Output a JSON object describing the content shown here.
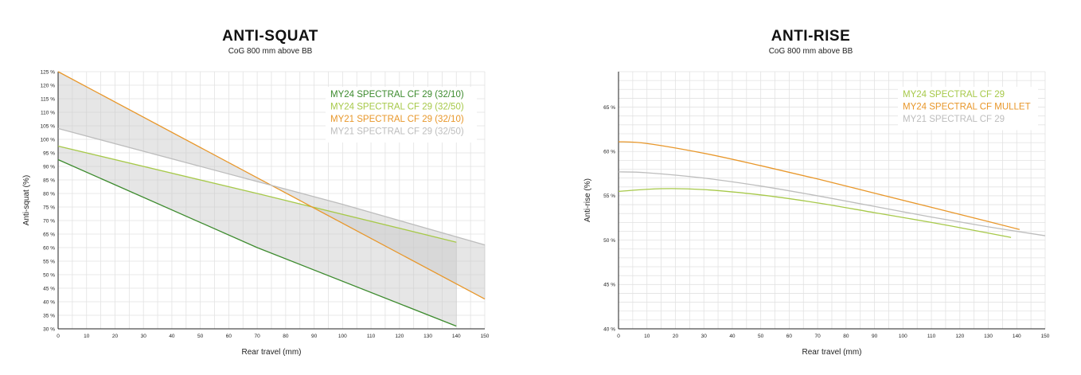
{
  "chart_data": [
    {
      "type": "line",
      "title": "ANTI-SQUAT",
      "subtitle": "CoG 800 mm above BB",
      "xlabel": "Rear travel (mm)",
      "ylabel": "Anti-squat (%)",
      "xlim": [
        0,
        150
      ],
      "ylim": [
        30,
        125
      ],
      "x_ticks": [
        "0",
        "10",
        "20",
        "30",
        "40",
        "50",
        "60",
        "70",
        "80",
        "90",
        "100",
        "110",
        "120",
        "130",
        "140",
        "150"
      ],
      "y_ticks": [
        "30 %",
        "35 %",
        "40 %",
        "45 %",
        "50 %",
        "55 %",
        "60 %",
        "65 %",
        "70 %",
        "75 %",
        "80 %",
        "85 %",
        "90 %",
        "95 %",
        "100 %",
        "105 %",
        "110 %",
        "115 %",
        "120 %",
        "125 %"
      ],
      "grid": true,
      "legend_position": "top-right",
      "shaded_bands": [
        {
          "between": [
            "MY24 SPECTRAL CF 29 (32/10)",
            "MY24 SPECTRAL CF 29 (32/50)"
          ],
          "color": "#c8c8c8"
        },
        {
          "between": [
            "MY21 SPECTRAL CF 29 (32/10)",
            "MY21 SPECTRAL CF 29 (32/50)"
          ],
          "color": "#c8c8c8"
        }
      ],
      "series": [
        {
          "name": "MY24 SPECTRAL CF 29 (32/10)",
          "color": "#3d8b2e",
          "x": [
            0,
            70,
            140
          ],
          "y": [
            92.5,
            60,
            31
          ]
        },
        {
          "name": "MY24 SPECTRAL CF 29 (32/50)",
          "color": "#a7c94a",
          "x": [
            0,
            70,
            140
          ],
          "y": [
            97.5,
            80,
            62
          ]
        },
        {
          "name": "MY21 SPECTRAL CF 29 (32/10)",
          "color": "#e8972a",
          "x": [
            0,
            75,
            150
          ],
          "y": [
            125,
            83,
            41
          ]
        },
        {
          "name": "MY21 SPECTRAL CF 29 (32/50)",
          "color": "#bdbdbd",
          "x": [
            0,
            50,
            100,
            150
          ],
          "y": [
            104,
            90,
            76,
            61
          ]
        }
      ]
    },
    {
      "type": "line",
      "title": "ANTI-RISE",
      "subtitle": "CoG 800 mm above BB",
      "xlabel": "Rear travel (mm)",
      "ylabel": "Anti-rise (%)",
      "xlim": [
        0,
        150
      ],
      "ylim": [
        40,
        69
      ],
      "x_ticks": [
        "0",
        "10",
        "20",
        "30",
        "40",
        "50",
        "60",
        "70",
        "80",
        "90",
        "100",
        "110",
        "120",
        "130",
        "140",
        "150"
      ],
      "y_ticks": [
        "40 %",
        "45 %",
        "50 %",
        "55 %",
        "60 %",
        "65 %"
      ],
      "grid": true,
      "legend_position": "top-right",
      "series": [
        {
          "name": "MY24 SPECTRAL CF 29",
          "color": "#a7c94a",
          "x": [
            0,
            15,
            30,
            50,
            70,
            90,
            110,
            130,
            138
          ],
          "y": [
            55.5,
            55.8,
            55.7,
            55.1,
            54.2,
            53.1,
            52.0,
            50.8,
            50.3
          ]
        },
        {
          "name": "MY24 SPECTRAL CF MULLET",
          "color": "#e8972a",
          "x": [
            0,
            10,
            30,
            50,
            70,
            90,
            110,
            130,
            141
          ],
          "y": [
            61.1,
            60.9,
            59.8,
            58.4,
            56.9,
            55.3,
            53.7,
            52.1,
            51.2
          ]
        },
        {
          "name": "MY21 SPECTRAL CF 29",
          "color": "#bdbdbd",
          "x": [
            0,
            10,
            30,
            50,
            70,
            90,
            110,
            130,
            150
          ],
          "y": [
            57.7,
            57.6,
            57.0,
            56.1,
            55.0,
            53.8,
            52.6,
            51.5,
            50.5
          ]
        }
      ]
    }
  ]
}
